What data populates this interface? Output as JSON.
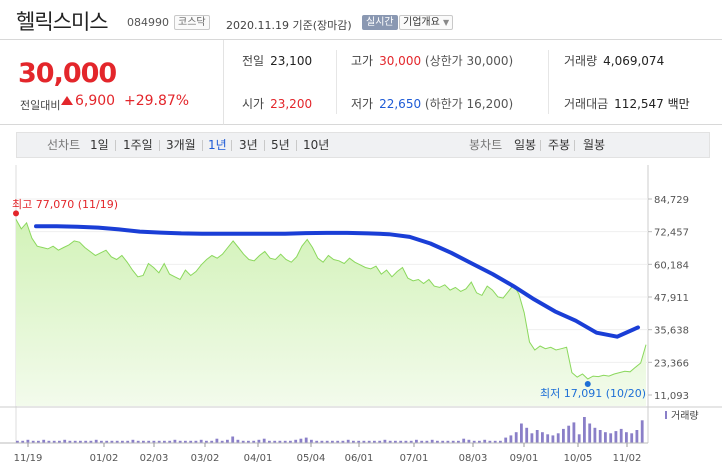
{
  "header": {
    "name": "헬릭스미스",
    "code": "084990",
    "market": "코스닥",
    "date": "2020.11.19 기준(장마감)",
    "realtime_label": "실시간",
    "overview_label": "기업개요",
    "overview_icon": "caret-down-icon"
  },
  "price": {
    "current": "30,000",
    "change_label": "전일대비",
    "change": "6,900",
    "change_pct": "+29.87%",
    "direction_icon": "up-arrow-icon",
    "up_color": "#e3262b",
    "down_color": "#1e5bd6"
  },
  "info": {
    "prev_close": {
      "label": "전일",
      "value": "23,100"
    },
    "high": {
      "label": "고가",
      "value": "30,000",
      "sub": "(상한가 30,000)"
    },
    "volume": {
      "label": "거래량",
      "value": "4,069,074"
    },
    "open": {
      "label": "시가",
      "value": "23,200"
    },
    "low": {
      "label": "저가",
      "value": "22,650",
      "sub": "(하한가 16,200)"
    },
    "turnover": {
      "label": "거래대금",
      "value": "112,547 백만"
    }
  },
  "line_tabs": {
    "title": "선차트",
    "items": [
      "1일",
      "1주일",
      "3개월",
      "1년",
      "3년",
      "5년",
      "10년"
    ],
    "active": "1년"
  },
  "candle_tabs": {
    "title": "봉차트",
    "items": [
      "일봉",
      "주봉",
      "월봉"
    ]
  },
  "chart_data": {
    "type": "area",
    "x_ticks": [
      "11/19",
      "01/02",
      "02/03",
      "03/02",
      "04/01",
      "05/04",
      "06/01",
      "07/01",
      "08/03",
      "09/01",
      "10/05",
      "11/02"
    ],
    "y_ticks": [
      "84,729",
      "72,457",
      "60,184",
      "47,911",
      "35,638",
      "23,366",
      "11,093"
    ],
    "ylim": [
      11093,
      84729
    ],
    "price_series": [
      77070,
      73500,
      75800,
      70000,
      67000,
      66500,
      66000,
      67000,
      65500,
      66500,
      67500,
      69000,
      68500,
      66500,
      65000,
      63500,
      64500,
      65500,
      63000,
      62000,
      63500,
      61000,
      58000,
      55500,
      56000,
      60500,
      59000,
      57000,
      60500,
      56500,
      55500,
      54500,
      58000,
      56000,
      57500,
      60000,
      62000,
      63500,
      62500,
      64000,
      66500,
      69000,
      66500,
      64000,
      62000,
      61500,
      63500,
      65000,
      62500,
      62000,
      64000,
      62000,
      61000,
      63000,
      67000,
      69500,
      66500,
      62500,
      61000,
      63500,
      62000,
      61500,
      60500,
      62500,
      61000,
      60000,
      59000,
      58500,
      59500,
      56500,
      58000,
      55500,
      57500,
      59000,
      55000,
      54000,
      54500,
      53000,
      54500,
      52000,
      51500,
      52500,
      50500,
      51500,
      50000,
      51000,
      53500,
      49500,
      48500,
      52000,
      50500,
      48000,
      47500,
      50000,
      52500,
      49000,
      42000,
      31000,
      28000,
      29500,
      28500,
      29000,
      28000,
      28500,
      29000,
      19500,
      17800,
      19000,
      17091,
      18200,
      18000,
      18500,
      18200,
      19000,
      19500,
      20000,
      19800,
      21500,
      23100,
      30000
    ],
    "moving_average": [
      74500,
      74500,
      74300,
      74000,
      73300,
      72500,
      72100,
      71800,
      71700,
      71700,
      71700,
      71700,
      71700,
      71900,
      72000,
      72000,
      71800,
      71500,
      70500,
      68000,
      64500,
      60500,
      56500,
      52000,
      47000,
      42500,
      39000,
      34500,
      33000,
      36500
    ],
    "annotations": {
      "high": {
        "label": "최고",
        "value": "77,070",
        "date": "(11/19)"
      },
      "low": {
        "label": "최저",
        "value": "17,091",
        "date": "(10/20)"
      }
    },
    "volume_label": "거래량",
    "volume": [
      2,
      2,
      3,
      2,
      2,
      3,
      2,
      2,
      2,
      3,
      2,
      2,
      2,
      2,
      2,
      3,
      2,
      2,
      2,
      2,
      2,
      2,
      3,
      2,
      2,
      2,
      2,
      2,
      2,
      2,
      3,
      2,
      2,
      2,
      2,
      3,
      2,
      2,
      4,
      2,
      3,
      6,
      3,
      2,
      2,
      2,
      3,
      4,
      2,
      2,
      2,
      2,
      2,
      3,
      4,
      5,
      3,
      2,
      2,
      2,
      2,
      2,
      2,
      3,
      2,
      2,
      2,
      2,
      2,
      2,
      3,
      2,
      2,
      2,
      2,
      2,
      3,
      2,
      2,
      3,
      2,
      2,
      2,
      2,
      2,
      4,
      3,
      2,
      2,
      3,
      2,
      2,
      2,
      5,
      7,
      10,
      18,
      14,
      9,
      12,
      10,
      8,
      7,
      9,
      13,
      16,
      19,
      8,
      24,
      18,
      14,
      12,
      10,
      9,
      11,
      13,
      10,
      9,
      12,
      21
    ],
    "price_color": "#8bd85d",
    "ma_color": "#1a3ed6",
    "high_color": "#e3262b",
    "low_color": "#1e6fd6"
  }
}
